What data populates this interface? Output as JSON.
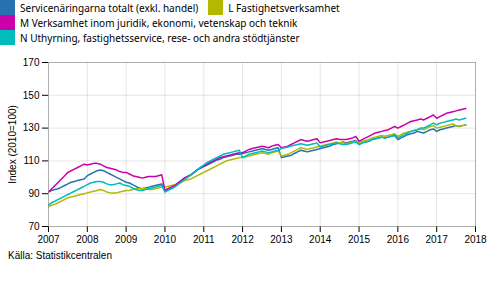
{
  "chart_data": {
    "type": "line",
    "ylabel": "Index (2010=100)",
    "source": "Källa: Statistikcentralen",
    "ylim": [
      70,
      170
    ],
    "yticks": [
      70,
      90,
      110,
      130,
      150,
      170
    ],
    "xlim": [
      2007.0,
      2018.0
    ],
    "xticks": [
      2007,
      2008,
      2009,
      2010,
      2011,
      2012,
      2013,
      2014,
      2015,
      2016,
      2017,
      2018
    ],
    "grid": true,
    "legend": "top",
    "x": [
      2007.0,
      2007.083,
      2007.167,
      2007.25,
      2007.333,
      2007.417,
      2007.5,
      2007.583,
      2007.667,
      2007.75,
      2007.833,
      2007.917,
      2008.0,
      2008.083,
      2008.167,
      2008.25,
      2008.333,
      2008.417,
      2008.5,
      2008.583,
      2008.667,
      2008.75,
      2008.833,
      2008.917,
      2009.0,
      2009.083,
      2009.167,
      2009.25,
      2009.333,
      2009.417,
      2009.5,
      2009.583,
      2009.667,
      2009.75,
      2009.833,
      2009.917,
      2010.0,
      2010.083,
      2010.167,
      2010.25,
      2010.333,
      2010.417,
      2010.5,
      2010.583,
      2010.667,
      2010.75,
      2010.833,
      2010.917,
      2011.0,
      2011.083,
      2011.167,
      2011.25,
      2011.333,
      2011.417,
      2011.5,
      2011.583,
      2011.667,
      2011.75,
      2011.833,
      2011.917,
      2012.0,
      2012.083,
      2012.167,
      2012.25,
      2012.333,
      2012.417,
      2012.5,
      2012.583,
      2012.667,
      2012.75,
      2012.833,
      2012.917,
      2013.0,
      2013.083,
      2013.167,
      2013.25,
      2013.333,
      2013.417,
      2013.5,
      2013.583,
      2013.667,
      2013.75,
      2013.833,
      2013.917,
      2014.0,
      2014.083,
      2014.167,
      2014.25,
      2014.333,
      2014.417,
      2014.5,
      2014.583,
      2014.667,
      2014.75,
      2014.833,
      2014.917,
      2015.0,
      2015.083,
      2015.167,
      2015.25,
      2015.333,
      2015.417,
      2015.5,
      2015.583,
      2015.667,
      2015.75,
      2015.833,
      2015.917,
      2016.0,
      2016.083,
      2016.167,
      2016.25,
      2016.333,
      2016.417,
      2016.5,
      2016.583,
      2016.667,
      2016.75,
      2016.833,
      2016.917,
      2017.0,
      2017.083,
      2017.167,
      2017.25,
      2017.333,
      2017.417,
      2017.5,
      2017.583,
      2017.667,
      2017.75
    ],
    "series": [
      {
        "name": "Servicenäringarna totalt (exkl. handel)",
        "color": "#2672b0",
        "values": [
          91,
          92,
          92.5,
          93,
          94,
          95,
          96,
          97,
          97.5,
          98,
          98.5,
          99,
          101,
          102,
          103,
          104,
          104.5,
          104,
          103,
          102,
          101,
          100,
          99,
          98,
          97,
          96.5,
          95.5,
          94.5,
          93.5,
          93,
          93.5,
          94,
          94.5,
          95,
          95.5,
          96,
          92,
          93,
          94,
          95,
          96.5,
          98,
          99.5,
          100.5,
          101.5,
          103,
          104.5,
          105.5,
          106.5,
          107.5,
          108.5,
          109.5,
          110.5,
          111,
          112,
          112.5,
          113,
          113.5,
          114,
          114,
          114.5,
          115,
          115.5,
          116,
          116.5,
          117,
          117.5,
          117,
          116.5,
          117,
          117.5,
          118,
          112,
          112.5,
          113,
          113.5,
          114.5,
          115.5,
          116.5,
          116,
          115.5,
          116,
          116.5,
          117,
          117.5,
          118,
          118.5,
          119,
          120,
          120.5,
          121,
          121.5,
          121,
          121.5,
          122,
          122.5,
          120,
          121,
          121.5,
          122,
          123,
          123.5,
          124,
          124.5,
          124,
          124.5,
          125,
          125.5,
          123,
          124,
          125,
          126,
          126.5,
          127,
          128,
          127.5,
          127,
          128,
          129,
          129.5,
          128,
          129,
          129.5,
          130,
          130.5,
          131,
          131.5,
          131,
          131.5,
          132
        ]
      },
      {
        "name": "L Fastighetsverksamhet",
        "color": "#b5b800",
        "values": [
          82,
          83,
          83.5,
          84.5,
          85.5,
          86.5,
          87.5,
          88,
          88.5,
          89,
          89.5,
          90,
          90.5,
          91,
          91.5,
          92,
          92.5,
          92,
          91,
          90.5,
          90.5,
          90.5,
          91,
          91.5,
          92,
          92,
          92.5,
          93,
          93,
          93,
          93,
          92.5,
          92.5,
          93,
          93.5,
          94,
          94,
          94.5,
          95,
          95.5,
          96,
          97,
          98,
          98.5,
          99,
          100,
          101,
          102,
          103,
          104,
          105,
          106,
          107,
          108,
          109,
          110,
          110.5,
          111,
          111.5,
          112,
          112,
          112.5,
          113,
          113.5,
          114,
          114.5,
          115,
          114.5,
          114,
          115,
          115.5,
          116,
          113,
          113.5,
          114,
          115,
          116,
          117,
          118,
          117.5,
          117,
          117.5,
          118,
          118.5,
          119,
          119.5,
          120,
          120.5,
          121,
          121.5,
          121,
          121,
          120.5,
          121,
          121.5,
          122,
          121,
          122,
          122.5,
          123,
          124,
          124.5,
          125,
          125.5,
          125,
          125.5,
          126,
          126.5,
          125,
          126,
          127,
          127.5,
          128,
          128.5,
          129,
          129.5,
          129,
          130,
          131,
          131.5,
          130,
          130.5,
          131,
          131.5,
          132,
          132.5,
          131.5,
          131,
          131.5,
          132
        ]
      },
      {
        "name": "M Verksamhet inom juridik, ekonomi, vetenskap och teknik",
        "color": "#cc00aa",
        "values": [
          91,
          93,
          95,
          97,
          99,
          101,
          103,
          104,
          105,
          106,
          107,
          108,
          107.5,
          108,
          108.5,
          108.5,
          108,
          107,
          106,
          105.5,
          105,
          104.5,
          103.5,
          103,
          103,
          102,
          101,
          100.5,
          100,
          99.5,
          100,
          100.5,
          100.5,
          100.5,
          101,
          101.5,
          92,
          93,
          94,
          95,
          96.5,
          98,
          99.5,
          100.5,
          101.5,
          103,
          104.5,
          106,
          107,
          108,
          109,
          110,
          111,
          112,
          112.5,
          113,
          113.5,
          114,
          114.5,
          115,
          115,
          116,
          117,
          117.5,
          118,
          118.5,
          119,
          118.5,
          118,
          119,
          119.5,
          120,
          118,
          118.5,
          119,
          120,
          121,
          122,
          123,
          122.5,
          122,
          122.5,
          123,
          123.5,
          121,
          121.5,
          122,
          122.5,
          123,
          123.5,
          123,
          123,
          123,
          123.5,
          124,
          125,
          122,
          123,
          124,
          125,
          126,
          127,
          127.5,
          128,
          128.5,
          129,
          130,
          131,
          130,
          131,
          132,
          133,
          134,
          134.5,
          135,
          135.5,
          135,
          136,
          137,
          138,
          136,
          137,
          138,
          139,
          139.5,
          140,
          140.5,
          141,
          141.5,
          142
        ]
      },
      {
        "name": "N Uthyrning, fastighetsservice, rese- och andra stödtjänster",
        "color": "#00bcbc",
        "values": [
          83,
          84.5,
          85.5,
          86.5,
          87.5,
          88.5,
          89.5,
          90.5,
          91.5,
          92.5,
          93.5,
          94.5,
          95.5,
          96.5,
          97,
          97.5,
          97.5,
          97,
          96,
          95.5,
          95.5,
          96,
          96.5,
          95.5,
          95,
          94.5,
          93.5,
          92.5,
          92,
          92,
          92.5,
          93,
          93.5,
          94,
          94.5,
          95,
          91,
          92,
          93,
          94,
          95.5,
          97,
          98.5,
          100,
          101.5,
          103,
          104.5,
          106,
          107.5,
          109,
          110,
          111,
          112,
          113,
          114,
          114.5,
          115,
          115.5,
          116,
          116.5,
          112,
          113,
          114,
          114.5,
          115,
          115.5,
          116,
          115.5,
          115,
          115.5,
          116,
          116.5,
          117.5,
          118,
          118.5,
          119,
          119.5,
          120,
          120.5,
          120,
          119.5,
          120,
          120.5,
          121,
          118.5,
          119,
          119.5,
          120,
          120.5,
          121,
          120.5,
          120,
          120,
          120.5,
          121,
          121.5,
          120,
          121,
          121.5,
          122,
          123,
          123.5,
          124,
          124.5,
          124,
          124.5,
          125,
          126,
          124,
          125,
          126,
          127,
          128,
          128.5,
          129,
          130,
          130,
          131,
          132,
          133,
          132,
          133,
          133.5,
          134,
          134.5,
          135,
          135.5,
          135,
          135.5,
          136
        ]
      }
    ]
  }
}
